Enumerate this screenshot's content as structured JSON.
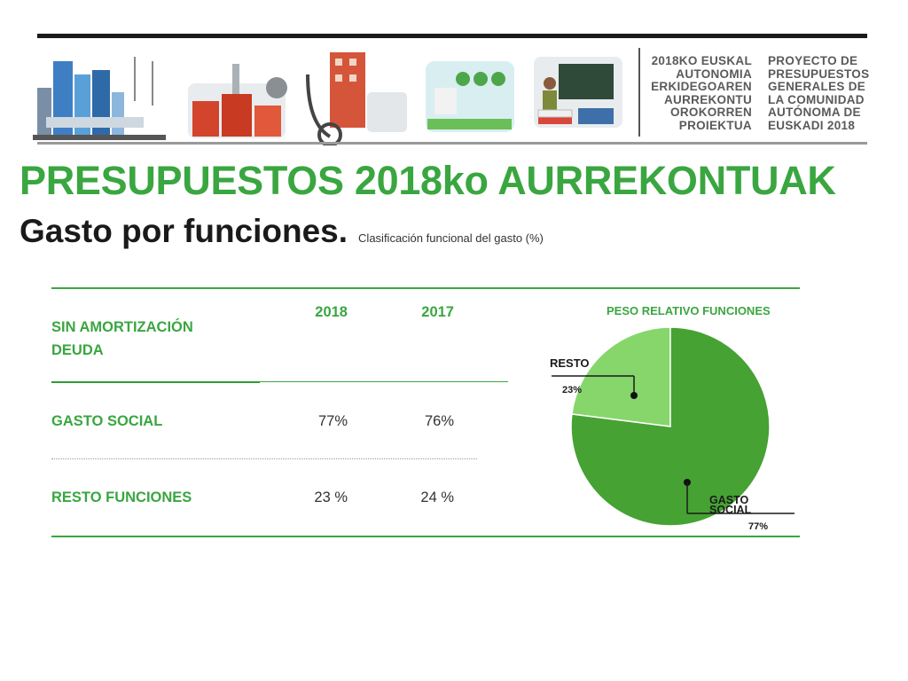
{
  "banner": {
    "text_eu": [
      "2018KO EUSKAL",
      "AUTONOMIA",
      "ERKIDEGOAREN",
      "AURREKONTU",
      "OROKORREN",
      "PROIEKTUA"
    ],
    "text_es": [
      "PROYECTO DE",
      "PRESUPUESTOS",
      "GENERALES DE",
      "LA COMUNIDAD",
      "AUTÓNOMA DE",
      "EUSKADI 2018"
    ]
  },
  "title": "PRESUPUESTOS 2018ko AURREKONTUAK",
  "subtitle": "Gasto por funciones.",
  "subtitle_note": "Clasificación funcional del gasto (%)",
  "table": {
    "header_label": [
      "SIN AMORTIZACIÓN",
      "DEUDA"
    ],
    "years": [
      "2018",
      "2017"
    ],
    "rows": [
      {
        "label": "GASTO SOCIAL",
        "v2018": "77%",
        "v2017": "76%"
      },
      {
        "label": "RESTO FUNCIONES",
        "v2018": "23 %",
        "v2017": "24 %"
      }
    ]
  },
  "chart_data": {
    "type": "pie",
    "title": "PESO RELATIVO FUNCIONES",
    "slices": [
      {
        "label": "RESTO",
        "value": 23,
        "value_label": "23%",
        "color": "#86d66b"
      },
      {
        "label": "GASTO SOCIAL",
        "value": 77,
        "value_label": "77%",
        "color": "#46a233"
      }
    ],
    "start_angle_deg": 0
  },
  "colors": {
    "accent_green": "#3aa640",
    "dark_green": "#46a233",
    "light_green": "#86d66b"
  }
}
